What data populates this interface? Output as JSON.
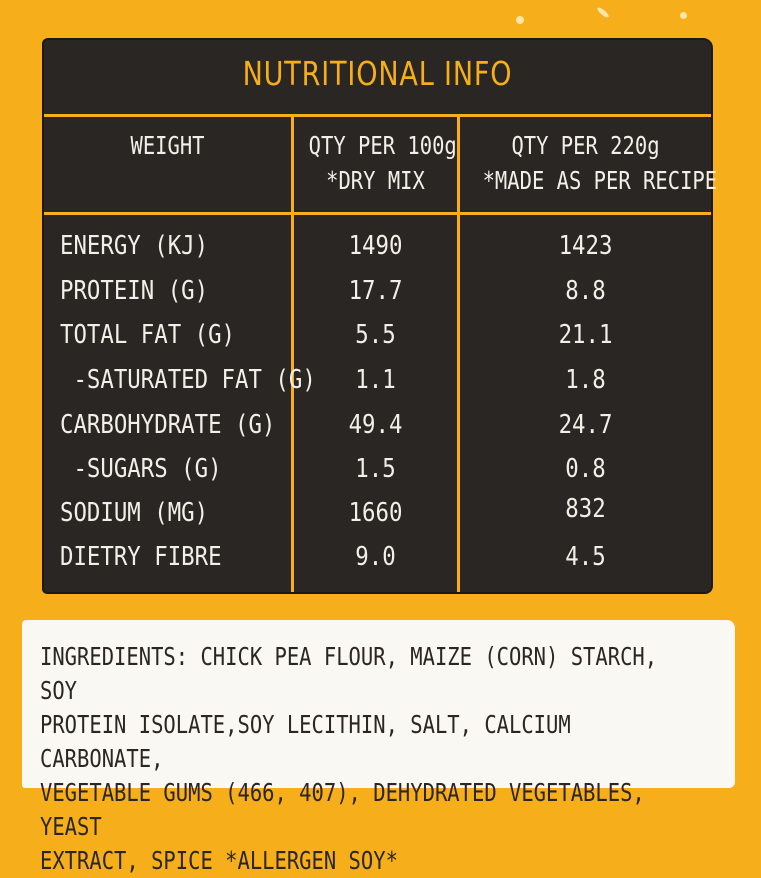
{
  "title": "NUTRITIONAL INFO",
  "headers": {
    "weight": "WEIGHT",
    "col1_line1": "QTY PER 100g",
    "col1_line2": "*DRY MIX",
    "col2_line1": "QTY PER 220g",
    "col2_line2": "*MADE AS PER RECIPE"
  },
  "rows": [
    {
      "label": "ENERGY (KJ)",
      "dry": "1490",
      "made": "1423"
    },
    {
      "label": "PROTEIN (G)",
      "dry": "17.7",
      "made": "8.8"
    },
    {
      "label": "TOTAL FAT (G)",
      "dry": "5.5",
      "made": "21.1"
    },
    {
      "label": " -SATURATED FAT (G)",
      "dry": "1.1",
      "made": "1.8"
    },
    {
      "label": "CARBOHYDRATE (G)",
      "dry": "49.4",
      "made": "24.7"
    },
    {
      "label": " -SUGARS (G)",
      "dry": "1.5",
      "made": "0.8"
    },
    {
      "label": "SODIUM (MG)",
      "dry": "1660",
      "made": "832"
    },
    {
      "label": "DIETRY FIBRE",
      "dry": "9.0",
      "made": "4.5"
    }
  ],
  "ingredients": "INGREDIENTS: CHICK PEA FLOUR, MAIZE (CORN) STARCH, SOY\nPROTEIN ISOLATE,SOY LECITHIN, SALT, CALCIUM CARBONATE,\nVEGETABLE GUMS (466, 407), DEHYDRATED VEGETABLES, YEAST\nEXTRACT, SPICE  *ALLERGEN SOY*",
  "colors": {
    "background": "#F6AE1B",
    "panel": "#2A2623",
    "accent": "#F6AE1B",
    "text_light": "#F3EFE8",
    "ingredients_bg": "#FAF8F2"
  }
}
